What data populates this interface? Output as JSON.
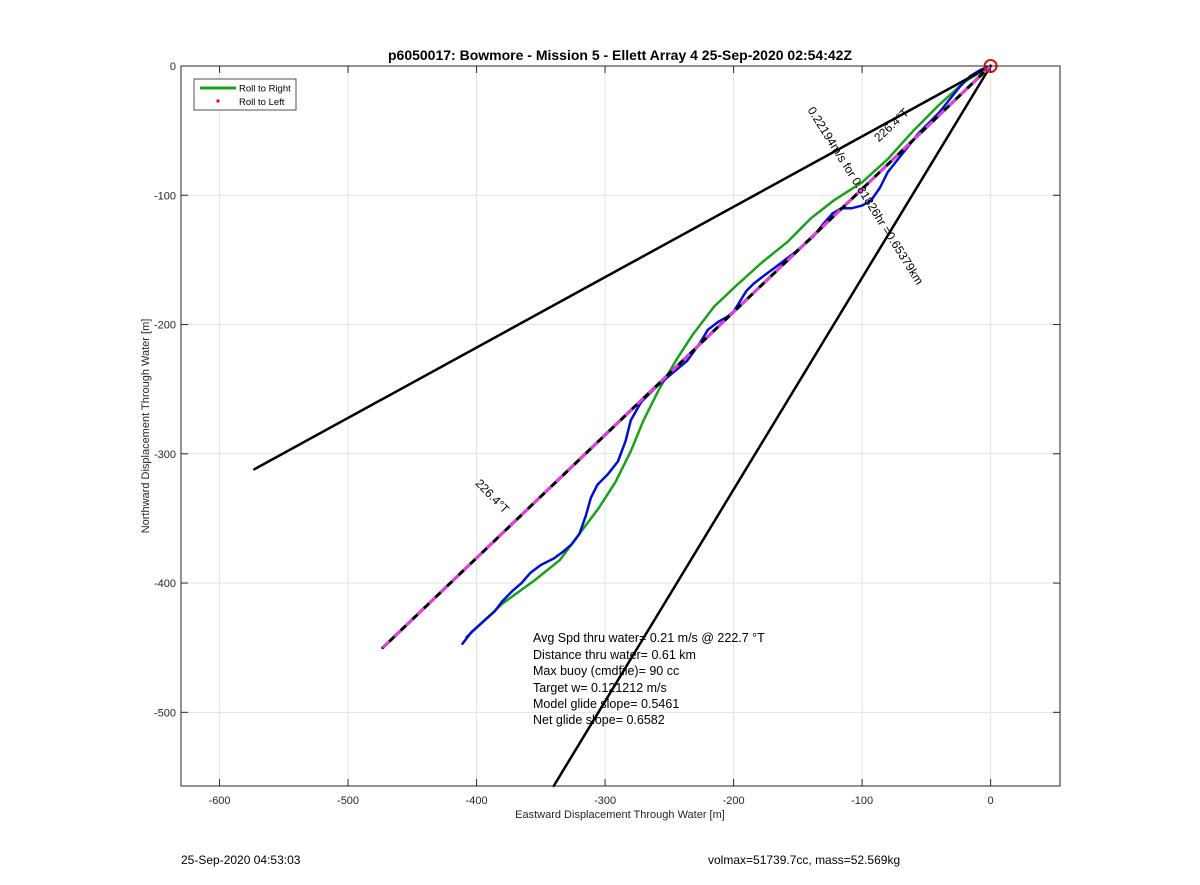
{
  "chart_data": {
    "type": "line",
    "title": "p6050017: Bowmore - Mission 5 - Ellett Array 4 25-Sep-2020 02:54:42Z",
    "xlabel": "Eastward Displacement Through Water [m]",
    "ylabel": "Northward Displacement Through Water [m]",
    "xlim": [
      -630,
      54
    ],
    "ylim": [
      -557,
      0
    ],
    "xticks": [
      -600,
      -500,
      -400,
      -300,
      -200,
      -100,
      0
    ],
    "yticks": [
      0,
      -100,
      -200,
      -300,
      -400,
      -500
    ],
    "xtick_labels": [
      "-600",
      "-500",
      "-400",
      "-300",
      "-200",
      "-100",
      "0"
    ],
    "ytick_labels": [
      "0",
      "-100",
      "-200",
      "-300",
      "-400",
      "-500"
    ],
    "grid": true,
    "legend_position": "top-left",
    "legend": [
      {
        "label": "Roll to Right",
        "color": "#1aa01a",
        "style": "line"
      },
      {
        "label": "Roll to Left",
        "color": "#ff0000",
        "style": "dot"
      }
    ],
    "series": [
      {
        "name": "Roll to Right",
        "color": "#1aa01a",
        "width": 2.5,
        "points": [
          [
            -408,
            -442
          ],
          [
            -380,
            -416
          ],
          [
            -355,
            -398
          ],
          [
            -335,
            -382
          ],
          [
            -320,
            -362
          ],
          [
            -305,
            -342
          ],
          [
            -292,
            -322
          ],
          [
            -280,
            -298
          ],
          [
            -270,
            -274
          ],
          [
            -258,
            -250
          ],
          [
            -245,
            -228
          ],
          [
            -232,
            -208
          ],
          [
            -215,
            -186
          ],
          [
            -198,
            -170
          ],
          [
            -178,
            -152
          ],
          [
            -158,
            -136
          ],
          [
            -140,
            -118
          ],
          [
            -122,
            -104
          ],
          [
            -100,
            -90
          ],
          [
            -80,
            -72
          ],
          [
            -60,
            -50
          ],
          [
            -40,
            -30
          ],
          [
            -20,
            -12
          ],
          [
            0,
            0
          ]
        ]
      },
      {
        "name": "",
        "color": "#0010c8",
        "width": 2.5,
        "points": [
          [
            -411,
            -447
          ],
          [
            -404,
            -438
          ],
          [
            -395,
            -430
          ],
          [
            -386,
            -422
          ],
          [
            -380,
            -414
          ],
          [
            -372,
            -406
          ],
          [
            -365,
            -400
          ],
          [
            -358,
            -392
          ],
          [
            -350,
            -386
          ],
          [
            -340,
            -381
          ],
          [
            -333,
            -376
          ],
          [
            -326,
            -370
          ],
          [
            -320,
            -362
          ],
          [
            -315,
            -348
          ],
          [
            -311,
            -334
          ],
          [
            -306,
            -324
          ],
          [
            -298,
            -316
          ],
          [
            -290,
            -306
          ],
          [
            -284,
            -290
          ],
          [
            -280,
            -274
          ],
          [
            -272,
            -260
          ],
          [
            -260,
            -248
          ],
          [
            -248,
            -238
          ],
          [
            -236,
            -228
          ],
          [
            -226,
            -214
          ],
          [
            -220,
            -204
          ],
          [
            -212,
            -198
          ],
          [
            -205,
            -194
          ],
          [
            -200,
            -190
          ],
          [
            -195,
            -182
          ],
          [
            -190,
            -174
          ],
          [
            -184,
            -168
          ],
          [
            -176,
            -162
          ],
          [
            -168,
            -156
          ],
          [
            -160,
            -150
          ],
          [
            -152,
            -144
          ],
          [
            -145,
            -138
          ],
          [
            -138,
            -132
          ],
          [
            -130,
            -122
          ],
          [
            -123,
            -114
          ],
          [
            -116,
            -110
          ],
          [
            -108,
            -110
          ],
          [
            -100,
            -108
          ],
          [
            -93,
            -104
          ],
          [
            -86,
            -94
          ],
          [
            -80,
            -82
          ],
          [
            -72,
            -72
          ],
          [
            -64,
            -62
          ],
          [
            -56,
            -52
          ],
          [
            -48,
            -44
          ],
          [
            -40,
            -36
          ],
          [
            -32,
            -26
          ],
          [
            -24,
            -16
          ],
          [
            -16,
            -8
          ],
          [
            -8,
            -3
          ],
          [
            0,
            0
          ]
        ]
      },
      {
        "name": "",
        "color": "#000000",
        "width": 2.5,
        "points": [
          [
            -573,
            -312
          ],
          [
            0,
            0
          ]
        ]
      },
      {
        "name": "",
        "color": "#000000",
        "width": 2.5,
        "points": [
          [
            -340,
            -557
          ],
          [
            0,
            0
          ]
        ]
      },
      {
        "name": "",
        "color": "#000000",
        "width": 3,
        "points": [
          [
            -473,
            -450
          ],
          [
            0,
            0
          ]
        ]
      },
      {
        "name": "",
        "color": "#e040e0",
        "width": 3,
        "dashed": true,
        "points": [
          [
            -473,
            -450
          ],
          [
            0,
            0
          ]
        ]
      }
    ],
    "marker": {
      "x": 0,
      "y": 0,
      "color": "#dd1111",
      "shape": "circle"
    },
    "annotations": [
      {
        "text": "226.4°T",
        "x": -75,
        "y": -48,
        "rotate": -43
      },
      {
        "text": "0.22194m/s for 0.81826hr =0.65379km",
        "x": -100,
        "y": -102,
        "rotate": 58
      },
      {
        "text": "226.4°T",
        "x": -390,
        "y": -335,
        "rotate": 46
      }
    ],
    "stats": [
      "Avg Spd thru water=  0.21 m/s @ 222.7 °T",
      "Distance thru water=  0.61 km",
      "Max buoy (cmdfile)= 90 cc",
      "Target w= 0.121212 m/s",
      "Model glide slope= 0.5461",
      "Net glide slope= 0.6582"
    ]
  },
  "footer": {
    "left": "25-Sep-2020 04:53:03",
    "right": "volmax=51739.7cc, mass=52.569kg"
  }
}
